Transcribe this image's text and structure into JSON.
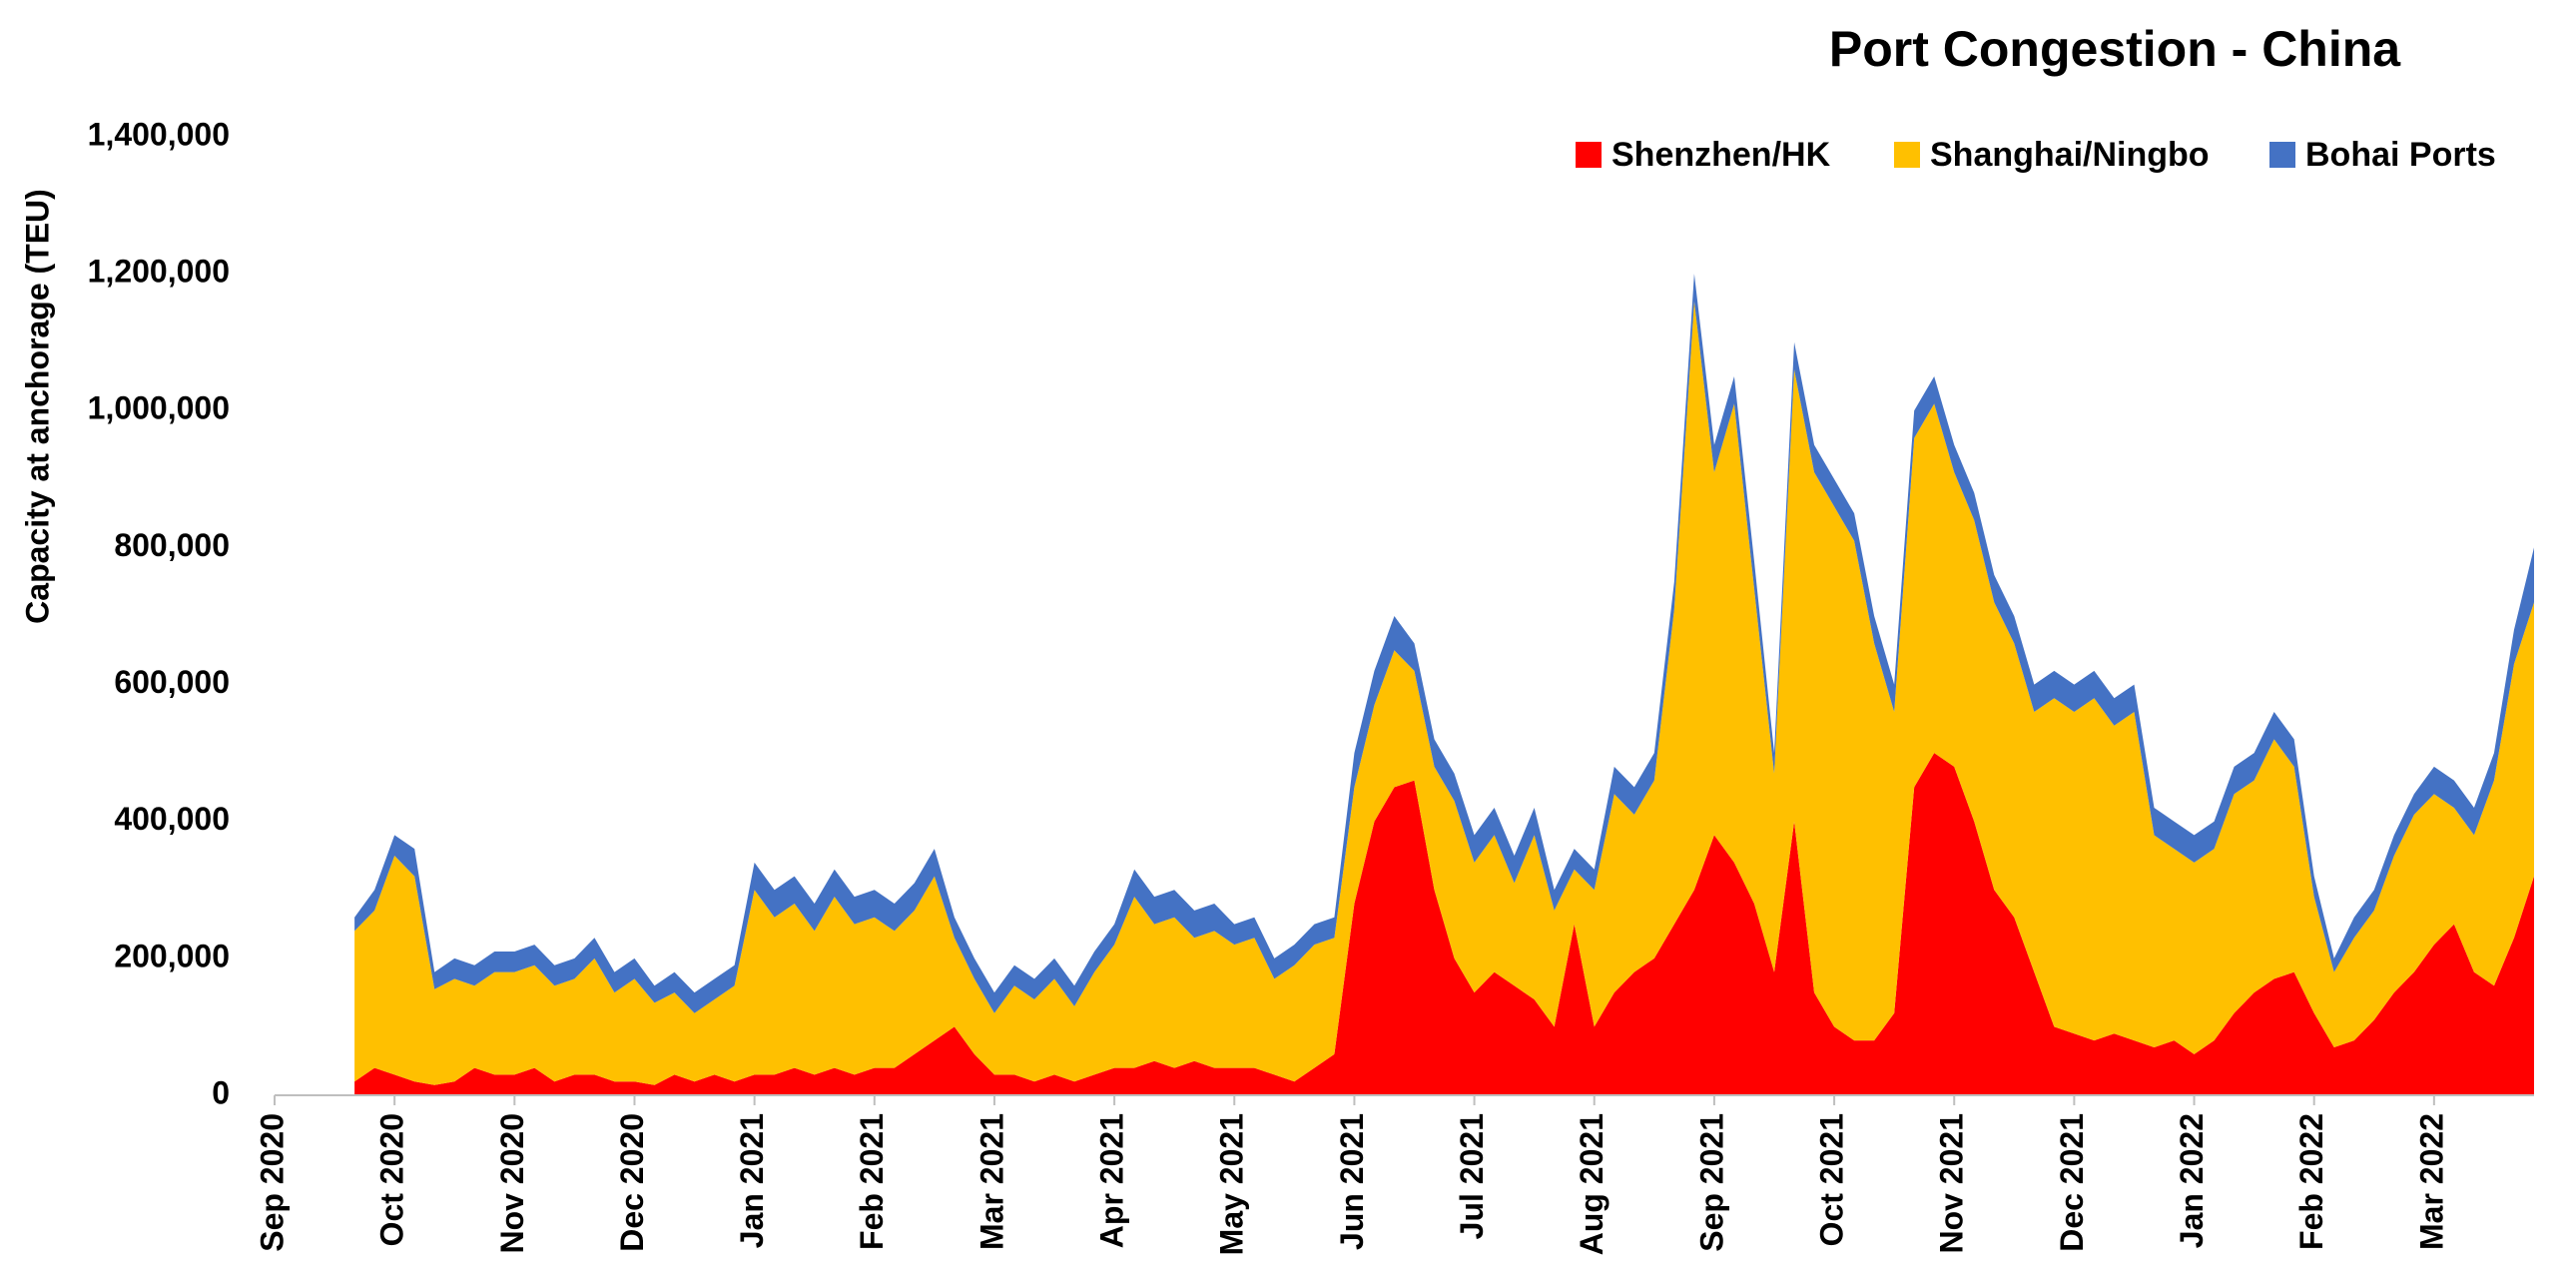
{
  "chart_data": {
    "type": "stacked_area",
    "title": "Port Congestion - China",
    "y_label": "Capacity at anchorage (TEU)",
    "ylim": [
      0,
      1400000
    ],
    "yticks": [
      0,
      {
        "value": 200000,
        "label": "200,000"
      },
      {
        "value": 400000,
        "label": "400,000"
      },
      {
        "value": 600000,
        "label": "600,000"
      },
      {
        "value": 800000,
        "label": "800,000"
      },
      {
        "value": 1000000,
        "label": "1,000,000"
      },
      {
        "value": 1200000,
        "label": "1,200,000"
      },
      {
        "value": 1400000,
        "label": "1,400,000"
      }
    ],
    "legend": "top-right",
    "categories": [
      "Sep 2020",
      null,
      null,
      null,
      null,
      null,
      "Oct 2020",
      null,
      null,
      null,
      null,
      null,
      "Nov 2020",
      null,
      null,
      null,
      null,
      null,
      "Dec 2020",
      null,
      null,
      null,
      null,
      null,
      "Jan 2021",
      null,
      null,
      null,
      null,
      null,
      "Feb 2021",
      null,
      null,
      null,
      null,
      null,
      "Mar 2021",
      null,
      null,
      null,
      null,
      null,
      "Apr 2021",
      null,
      null,
      null,
      null,
      null,
      "May 2021",
      null,
      null,
      null,
      null,
      null,
      "Jun 2021",
      null,
      null,
      null,
      null,
      null,
      "Jul 2021",
      null,
      null,
      null,
      null,
      null,
      "Aug 2021",
      null,
      null,
      null,
      null,
      null,
      "Sep 2021",
      null,
      null,
      null,
      null,
      null,
      "Oct 2021",
      null,
      null,
      null,
      null,
      null,
      "Nov 2021",
      null,
      null,
      null,
      null,
      null,
      "Dec 2021",
      null,
      null,
      null,
      null,
      null,
      "Jan 2022",
      null,
      null,
      null,
      null,
      null,
      "Feb 2022",
      null,
      null,
      null,
      null,
      null,
      "Mar 2022",
      null,
      null,
      null,
      null,
      null
    ],
    "series": [
      {
        "name": "Shenzhen/HK",
        "color": "#ff0000",
        "values": [
          null,
          null,
          null,
          null,
          20000,
          40000,
          30000,
          20000,
          15000,
          20000,
          40000,
          30000,
          30000,
          40000,
          20000,
          30000,
          30000,
          20000,
          20000,
          15000,
          30000,
          20000,
          30000,
          20000,
          30000,
          30000,
          40000,
          30000,
          40000,
          30000,
          40000,
          40000,
          60000,
          80000,
          100000,
          60000,
          30000,
          30000,
          20000,
          30000,
          20000,
          30000,
          40000,
          40000,
          50000,
          40000,
          50000,
          40000,
          40000,
          40000,
          30000,
          20000,
          40000,
          60000,
          280000,
          400000,
          450000,
          460000,
          300000,
          200000,
          150000,
          180000,
          160000,
          140000,
          100000,
          250000,
          100000,
          150000,
          180000,
          200000,
          250000,
          300000,
          380000,
          340000,
          280000,
          180000,
          400000,
          150000,
          100000,
          80000,
          80000,
          120000,
          450000,
          500000,
          480000,
          400000,
          300000,
          260000,
          180000,
          100000,
          90000,
          80000,
          90000,
          80000,
          70000,
          80000,
          60000,
          80000,
          120000,
          150000,
          170000,
          180000,
          120000,
          70000,
          80000,
          110000,
          150000,
          180000,
          220000,
          250000,
          180000,
          160000,
          230000,
          320000
        ]
      },
      {
        "name": "Shanghai/Ningbo",
        "color": "#ffc000",
        "values": [
          null,
          null,
          null,
          null,
          220000,
          230000,
          320000,
          300000,
          140000,
          150000,
          120000,
          150000,
          150000,
          150000,
          140000,
          140000,
          170000,
          130000,
          150000,
          120000,
          120000,
          100000,
          110000,
          140000,
          270000,
          230000,
          240000,
          210000,
          250000,
          220000,
          220000,
          200000,
          210000,
          240000,
          130000,
          110000,
          90000,
          130000,
          120000,
          140000,
          110000,
          150000,
          180000,
          250000,
          200000,
          220000,
          180000,
          200000,
          180000,
          190000,
          140000,
          170000,
          180000,
          170000,
          170000,
          170000,
          200000,
          160000,
          180000,
          230000,
          190000,
          200000,
          150000,
          240000,
          170000,
          80000,
          200000,
          290000,
          230000,
          260000,
          460000,
          860000,
          530000,
          670000,
          460000,
          290000,
          660000,
          760000,
          760000,
          730000,
          580000,
          440000,
          510000,
          510000,
          430000,
          440000,
          420000,
          400000,
          380000,
          480000,
          470000,
          500000,
          450000,
          480000,
          310000,
          280000,
          280000,
          280000,
          320000,
          310000,
          350000,
          300000,
          170000,
          110000,
          150000,
          160000,
          200000,
          230000,
          220000,
          170000,
          200000,
          300000,
          400000,
          400000
        ]
      },
      {
        "name": "Bohai Ports",
        "color": "#4472c4",
        "values": [
          null,
          null,
          null,
          null,
          20000,
          30000,
          30000,
          40000,
          25000,
          30000,
          30000,
          30000,
          30000,
          30000,
          30000,
          30000,
          30000,
          30000,
          30000,
          25000,
          30000,
          30000,
          30000,
          30000,
          40000,
          40000,
          40000,
          40000,
          40000,
          40000,
          40000,
          40000,
          40000,
          40000,
          30000,
          30000,
          30000,
          30000,
          30000,
          30000,
          30000,
          30000,
          30000,
          40000,
          40000,
          40000,
          40000,
          40000,
          30000,
          30000,
          30000,
          30000,
          30000,
          30000,
          50000,
          50000,
          50000,
          40000,
          40000,
          40000,
          40000,
          40000,
          40000,
          40000,
          30000,
          30000,
          30000,
          40000,
          40000,
          40000,
          40000,
          40000,
          40000,
          40000,
          40000,
          30000,
          40000,
          40000,
          40000,
          40000,
          40000,
          40000,
          40000,
          40000,
          40000,
          40000,
          40000,
          40000,
          40000,
          40000,
          40000,
          40000,
          40000,
          40000,
          40000,
          40000,
          40000,
          40000,
          40000,
          40000,
          40000,
          40000,
          30000,
          20000,
          30000,
          30000,
          30000,
          30000,
          40000,
          40000,
          40000,
          40000,
          50000,
          80000
        ]
      }
    ]
  }
}
